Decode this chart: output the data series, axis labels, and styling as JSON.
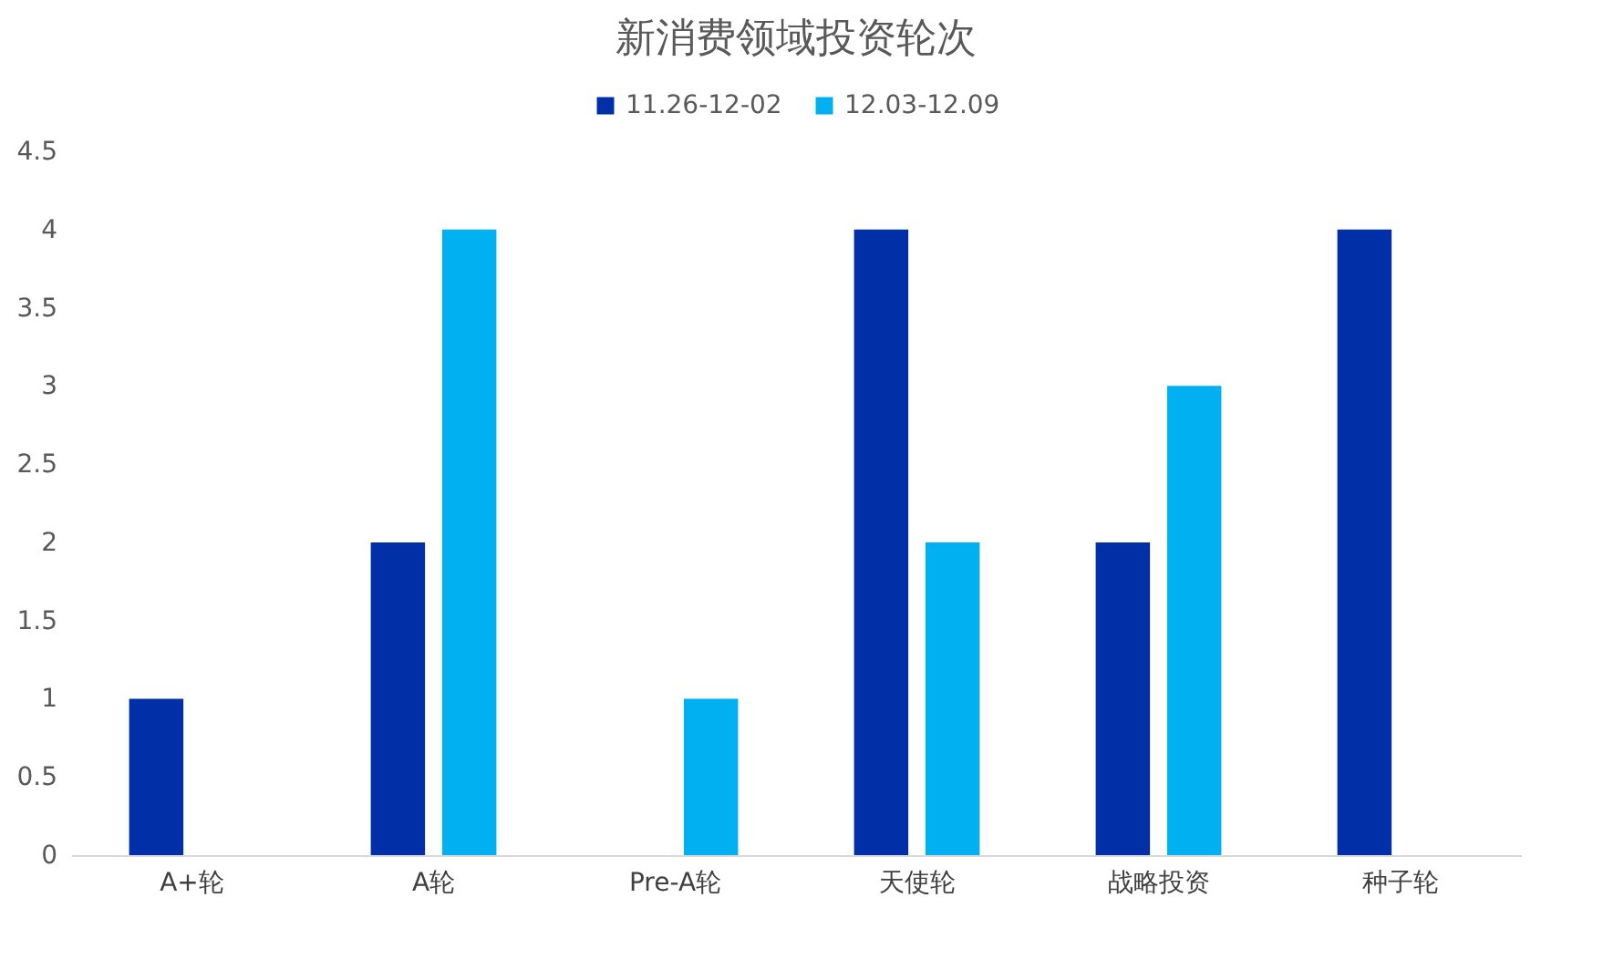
{
  "chart_data": {
    "type": "bar",
    "title": "新消费领域投资轮次",
    "categories": [
      "A+轮",
      "A轮",
      "Pre-A轮",
      "天使轮",
      "战略投资",
      "种子轮"
    ],
    "series": [
      {
        "name": "11.26-12-02",
        "color": "#002fa7",
        "values": [
          1,
          2,
          null,
          4,
          2,
          4
        ]
      },
      {
        "name": "12.03-12.09",
        "color": "#00b0f0",
        "values": [
          null,
          4,
          1,
          2,
          3,
          null
        ]
      }
    ],
    "ylim": [
      0,
      4.5
    ],
    "yticks": [
      0,
      0.5,
      1,
      1.5,
      2,
      2.5,
      3,
      3.5,
      4,
      4.5
    ],
    "legend": "top"
  }
}
